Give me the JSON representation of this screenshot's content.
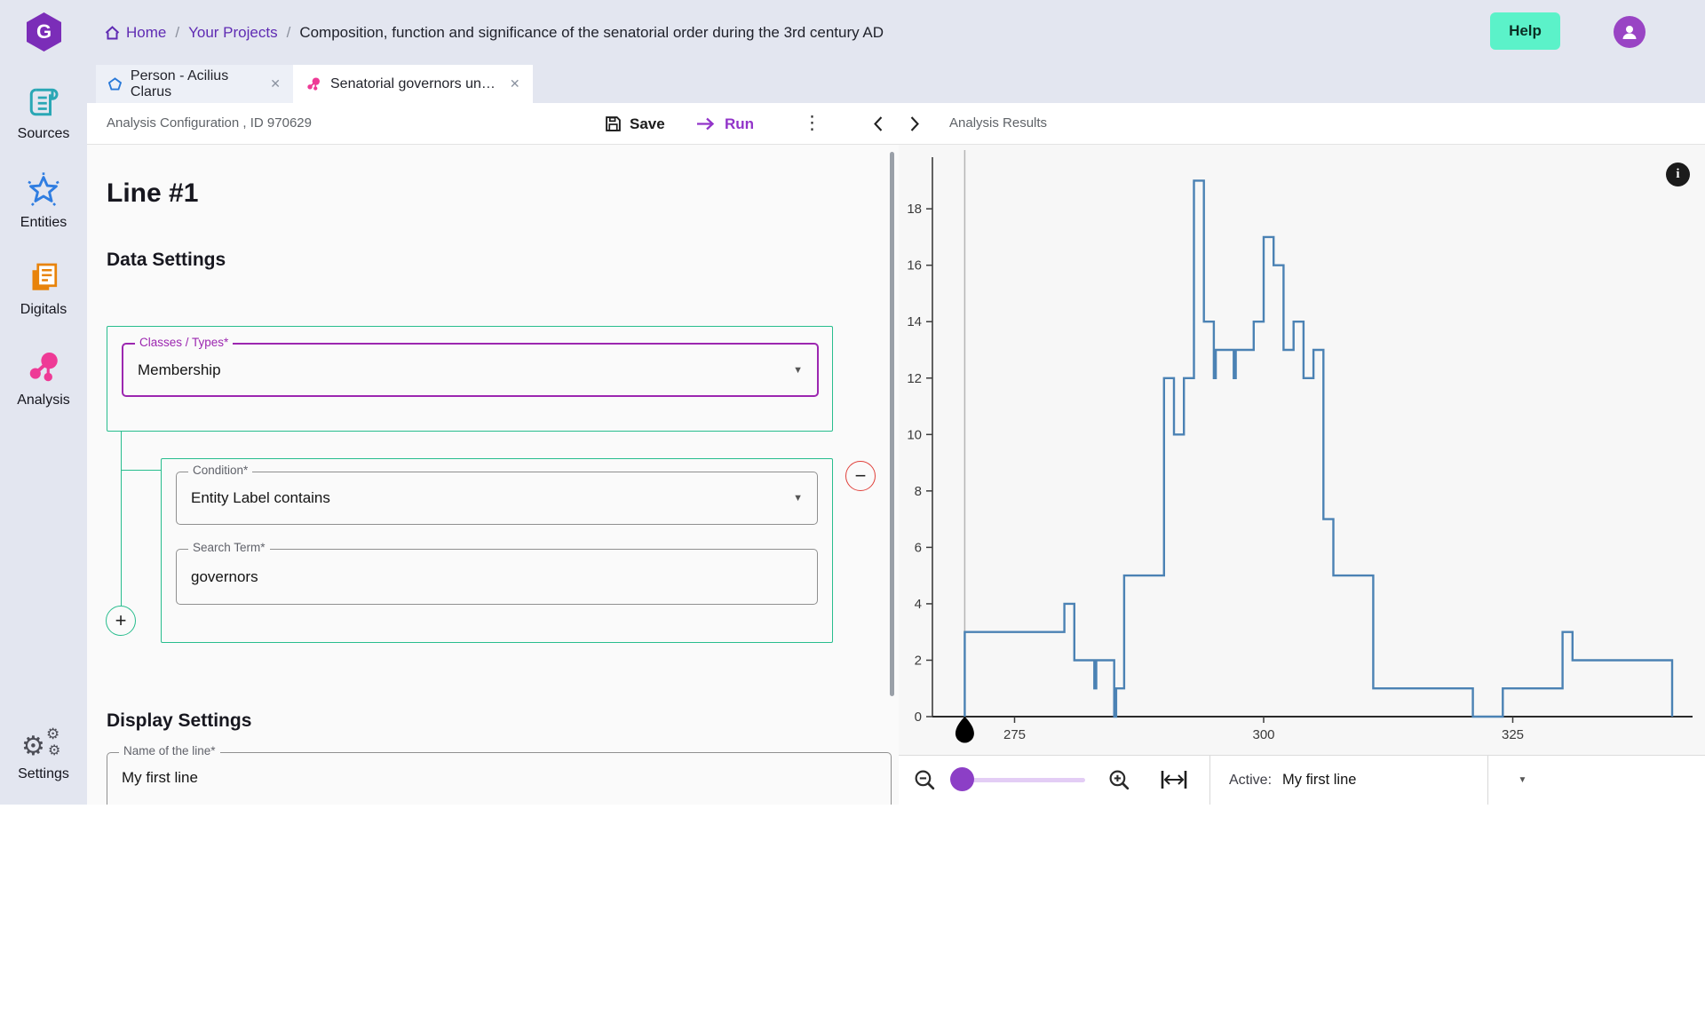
{
  "header": {
    "breadcrumb": {
      "home": "Home",
      "projects": "Your Projects",
      "separator": "/",
      "current": "Composition, function and significance of the senatorial order during the 3rd century AD"
    },
    "help_label": "Help"
  },
  "sidebar": {
    "items": [
      {
        "label": "Sources",
        "icon": "scroll-icon",
        "color": "#2aa7b5"
      },
      {
        "label": "Entities",
        "icon": "star-icon",
        "color": "#2f7de1"
      },
      {
        "label": "Digitals",
        "icon": "documents-icon",
        "color": "#e8830a"
      },
      {
        "label": "Analysis",
        "icon": "network-icon",
        "color": "#ee3a96"
      },
      {
        "label": "Settings",
        "icon": "gears-icon",
        "color": "#4d4e57"
      }
    ]
  },
  "tabs": [
    {
      "label": "Person - Acilius Clarus",
      "icon": "pentagon-icon",
      "close": "✕",
      "active": false
    },
    {
      "label": "Senatorial governors un…",
      "icon": "network-icon",
      "close": "✕",
      "active": true
    }
  ],
  "toolbar": {
    "title": "Analysis Configuration , ID 970629",
    "save_label": "Save",
    "run_label": "Run",
    "kebab": "⋮"
  },
  "form": {
    "heading": "Line #1",
    "data_settings_heading": "Data Settings",
    "classes_label": "Classes / Types*",
    "classes_value": "Membership",
    "condition_label": "Condition*",
    "condition_value": "Entity Label contains",
    "search_label": "Search Term*",
    "search_value": "governors",
    "plus_label": "+",
    "minus_label": "−",
    "display_settings_heading": "Display Settings",
    "name_label": "Name of the line*",
    "name_value": "My first line",
    "dropdown_arrow": "▼"
  },
  "results": {
    "title": "Analysis Results",
    "info_glyph": "i",
    "active_label": "Active:",
    "active_value": "My first line",
    "dropdown_arrow": "▼"
  },
  "colors": {
    "brand_purple": "#7b2db8",
    "help_mint": "#5bf2c9",
    "green_box": "#27bd8d",
    "purple_field": "#9c27b0",
    "run_purple": "#9234c9",
    "minus_red": "#e0403a",
    "slider_purple": "#8c3fc6",
    "chart_line": "#4b82b4"
  },
  "chart_data": {
    "type": "line",
    "line_style": "step",
    "title": "",
    "xlabel": "",
    "ylabel": "",
    "x_ticks": [
      275,
      300,
      325
    ],
    "y_ticks": [
      0,
      2,
      4,
      6,
      8,
      10,
      12,
      14,
      16,
      18
    ],
    "xlim": [
      267,
      343
    ],
    "ylim": [
      0,
      19.8
    ],
    "grid": false,
    "legend_position": "none",
    "marker_x": 270,
    "line_color": "#4b82b4",
    "series": [
      {
        "name": "My first line",
        "segments": [
          [
            270,
            280,
            3
          ],
          [
            280,
            281,
            4
          ],
          [
            281,
            283,
            2
          ],
          [
            283,
            283.2,
            1
          ],
          [
            283.2,
            285,
            2
          ],
          [
            285,
            285.2,
            0
          ],
          [
            285.2,
            286,
            1
          ],
          [
            286,
            290,
            5
          ],
          [
            290,
            291,
            12
          ],
          [
            291,
            292,
            10
          ],
          [
            292,
            293,
            12
          ],
          [
            293,
            294,
            19
          ],
          [
            294,
            295,
            14
          ],
          [
            295,
            295.2,
            12
          ],
          [
            295.2,
            297,
            13
          ],
          [
            297,
            297.2,
            12
          ],
          [
            297.2,
            299,
            13
          ],
          [
            299,
            300,
            14
          ],
          [
            300,
            301,
            17
          ],
          [
            301,
            302,
            16
          ],
          [
            302,
            303,
            13
          ],
          [
            303,
            304,
            14
          ],
          [
            304,
            305,
            12
          ],
          [
            305,
            306,
            13
          ],
          [
            306,
            307,
            7
          ],
          [
            307,
            311,
            5
          ],
          [
            311,
            321,
            1
          ],
          [
            321,
            324,
            0
          ],
          [
            324,
            330,
            1
          ],
          [
            330,
            331,
            3
          ],
          [
            331,
            341,
            2
          ]
        ]
      }
    ]
  }
}
